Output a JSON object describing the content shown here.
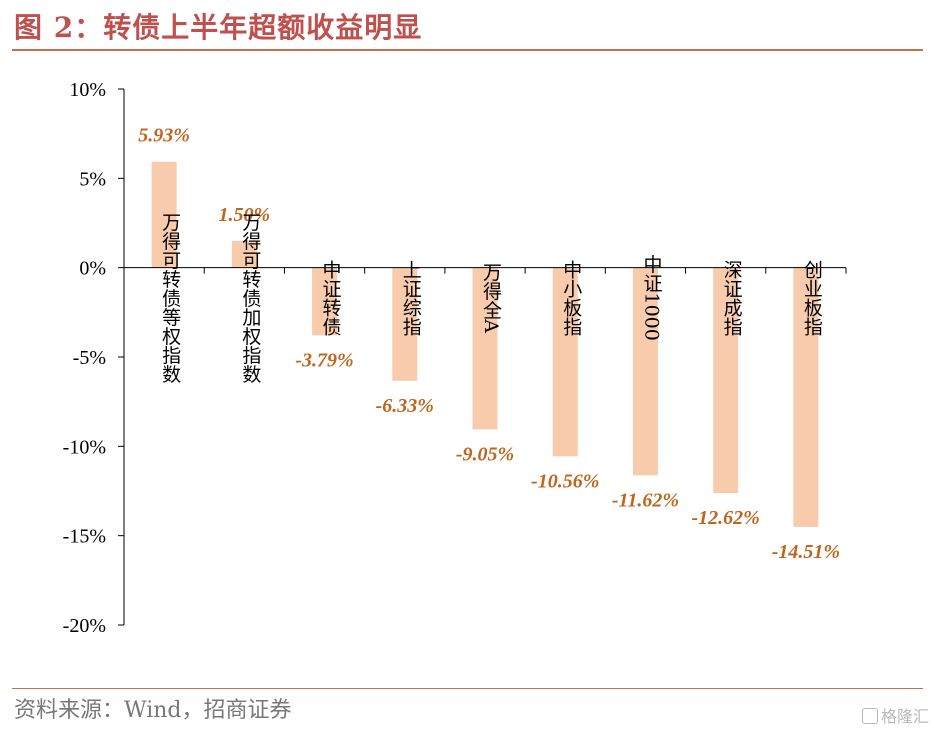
{
  "header": {
    "title": "图 2：转债上半年超额收益明显"
  },
  "footer": {
    "source": "资料来源：Wind，招商证券",
    "watermark": "格隆汇"
  },
  "colors": {
    "bar": "#f8cbad",
    "data_label": "#c0651e",
    "title": "#c0504d",
    "rule": "#c0714f"
  },
  "chart_data": {
    "type": "bar",
    "title": "",
    "xlabel": "",
    "ylabel": "",
    "categories": [
      "万得可转债等权指数",
      "万得可转债加权指数",
      "中证转债",
      "上证综指",
      "万得全A",
      "中小板指",
      "中证1000",
      "深证成指",
      "创业板指"
    ],
    "values": [
      5.93,
      1.5,
      -3.79,
      -6.33,
      -9.05,
      -10.56,
      -11.62,
      -12.62,
      -14.51
    ],
    "value_labels": [
      "5.93%",
      "1.50%",
      "-3.79%",
      "-6.33%",
      "-9.05%",
      "-10.56%",
      "-11.62%",
      "-12.62%",
      "-14.51%"
    ],
    "ylim": [
      -20,
      10
    ],
    "yticks": [
      10,
      5,
      0,
      -5,
      -10,
      -15,
      -20
    ],
    "ytick_labels": [
      "10%",
      "5%",
      "0%",
      "-5%",
      "-10%",
      "-15%",
      "-20%"
    ],
    "grid": false,
    "legend": "none"
  }
}
